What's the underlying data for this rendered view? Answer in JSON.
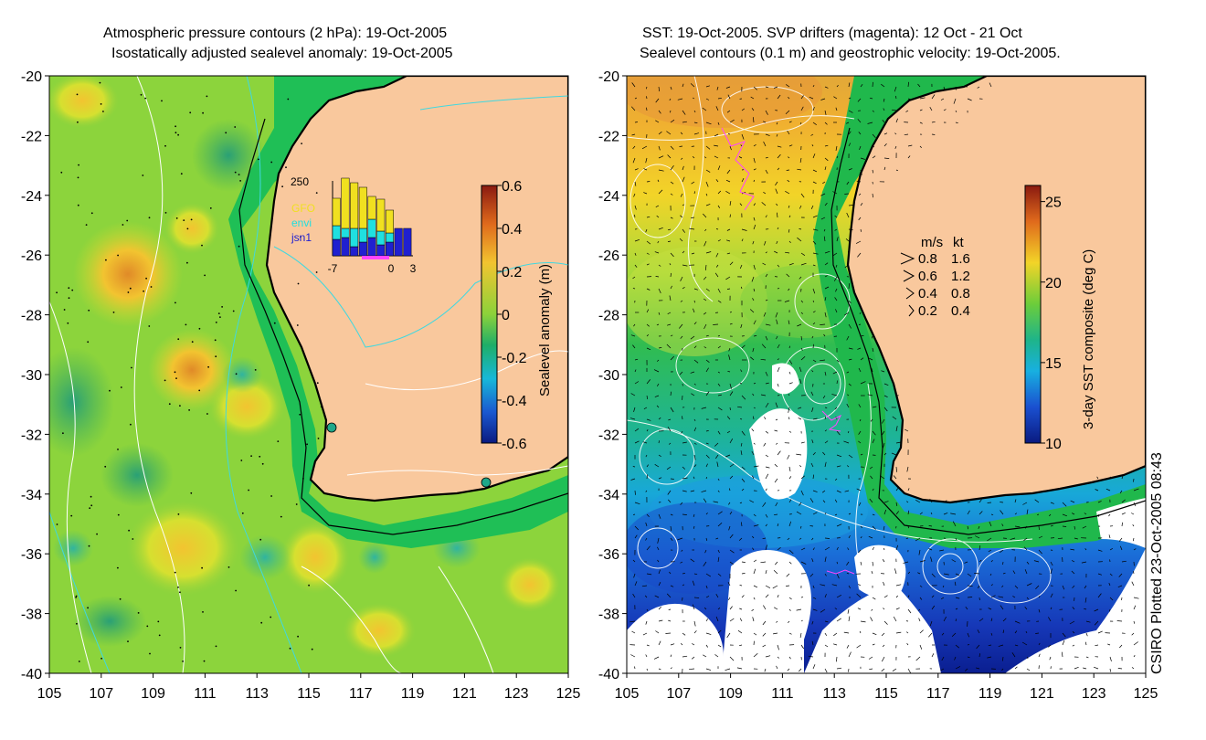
{
  "left_panel": {
    "title_line1": "Atmospheric pressure contours (2 hPa): 19-Oct-2005",
    "title_line2": "Isostatically adjusted sealevel anomaly: 19-Oct-2005",
    "colorbar": {
      "label": "Sealevel anomaly (m)",
      "ticks": [
        "0.6",
        "0.4",
        "0.2",
        "0",
        "-0.2",
        "-0.4",
        "-0.6"
      ],
      "range": [
        -0.6,
        0.6
      ]
    },
    "inset": {
      "ymax_label": "250",
      "legend": [
        {
          "name": "GFO",
          "color": "#f0e020"
        },
        {
          "name": "envi",
          "color": "#20e0e0"
        },
        {
          "name": "jsn1",
          "color": "#2020d0"
        }
      ],
      "x_ticks": [
        "-7",
        "0",
        "3"
      ]
    },
    "markers": [
      {
        "name": "tide-gauge",
        "lon": 116.0,
        "lat": -31.9
      },
      {
        "name": "tide-gauge",
        "lon": 121.9,
        "lat": -33.9
      }
    ]
  },
  "right_panel": {
    "title_line1": "SST: 19-Oct-2005. SVP drifters (magenta): 12 Oct - 21 Oct",
    "title_line2": "Sealevel contours (0.1 m) and geostrophic velocity: 19-Oct-2005.",
    "colorbar": {
      "label": "3-day SST composite (deg C)",
      "ticks": [
        "25",
        "20",
        "15",
        "10"
      ],
      "range": [
        10,
        26
      ]
    },
    "velocity_legend": {
      "header_ms": "m/s",
      "header_kt": "kt",
      "rows": [
        {
          "ms": "0.8",
          "kt": "1.6"
        },
        {
          "ms": "0.6",
          "kt": "1.2"
        },
        {
          "ms": "0.4",
          "kt": "0.8"
        },
        {
          "ms": "0.2",
          "kt": "0.4"
        }
      ]
    }
  },
  "axes": {
    "lat_ticks": [
      "-20",
      "-22",
      "-24",
      "-26",
      "-28",
      "-30",
      "-32",
      "-34",
      "-36",
      "-38",
      "-40"
    ],
    "lon_ticks": [
      "105",
      "107",
      "109",
      "111",
      "113",
      "115",
      "117",
      "119",
      "121",
      "123",
      "125"
    ]
  },
  "credit": "CSIRO Plotted 23-Oct-2005 08:43",
  "colors": {
    "land": "#f9c89d",
    "coast": "#000000",
    "drifter": "#ff44ff"
  }
}
